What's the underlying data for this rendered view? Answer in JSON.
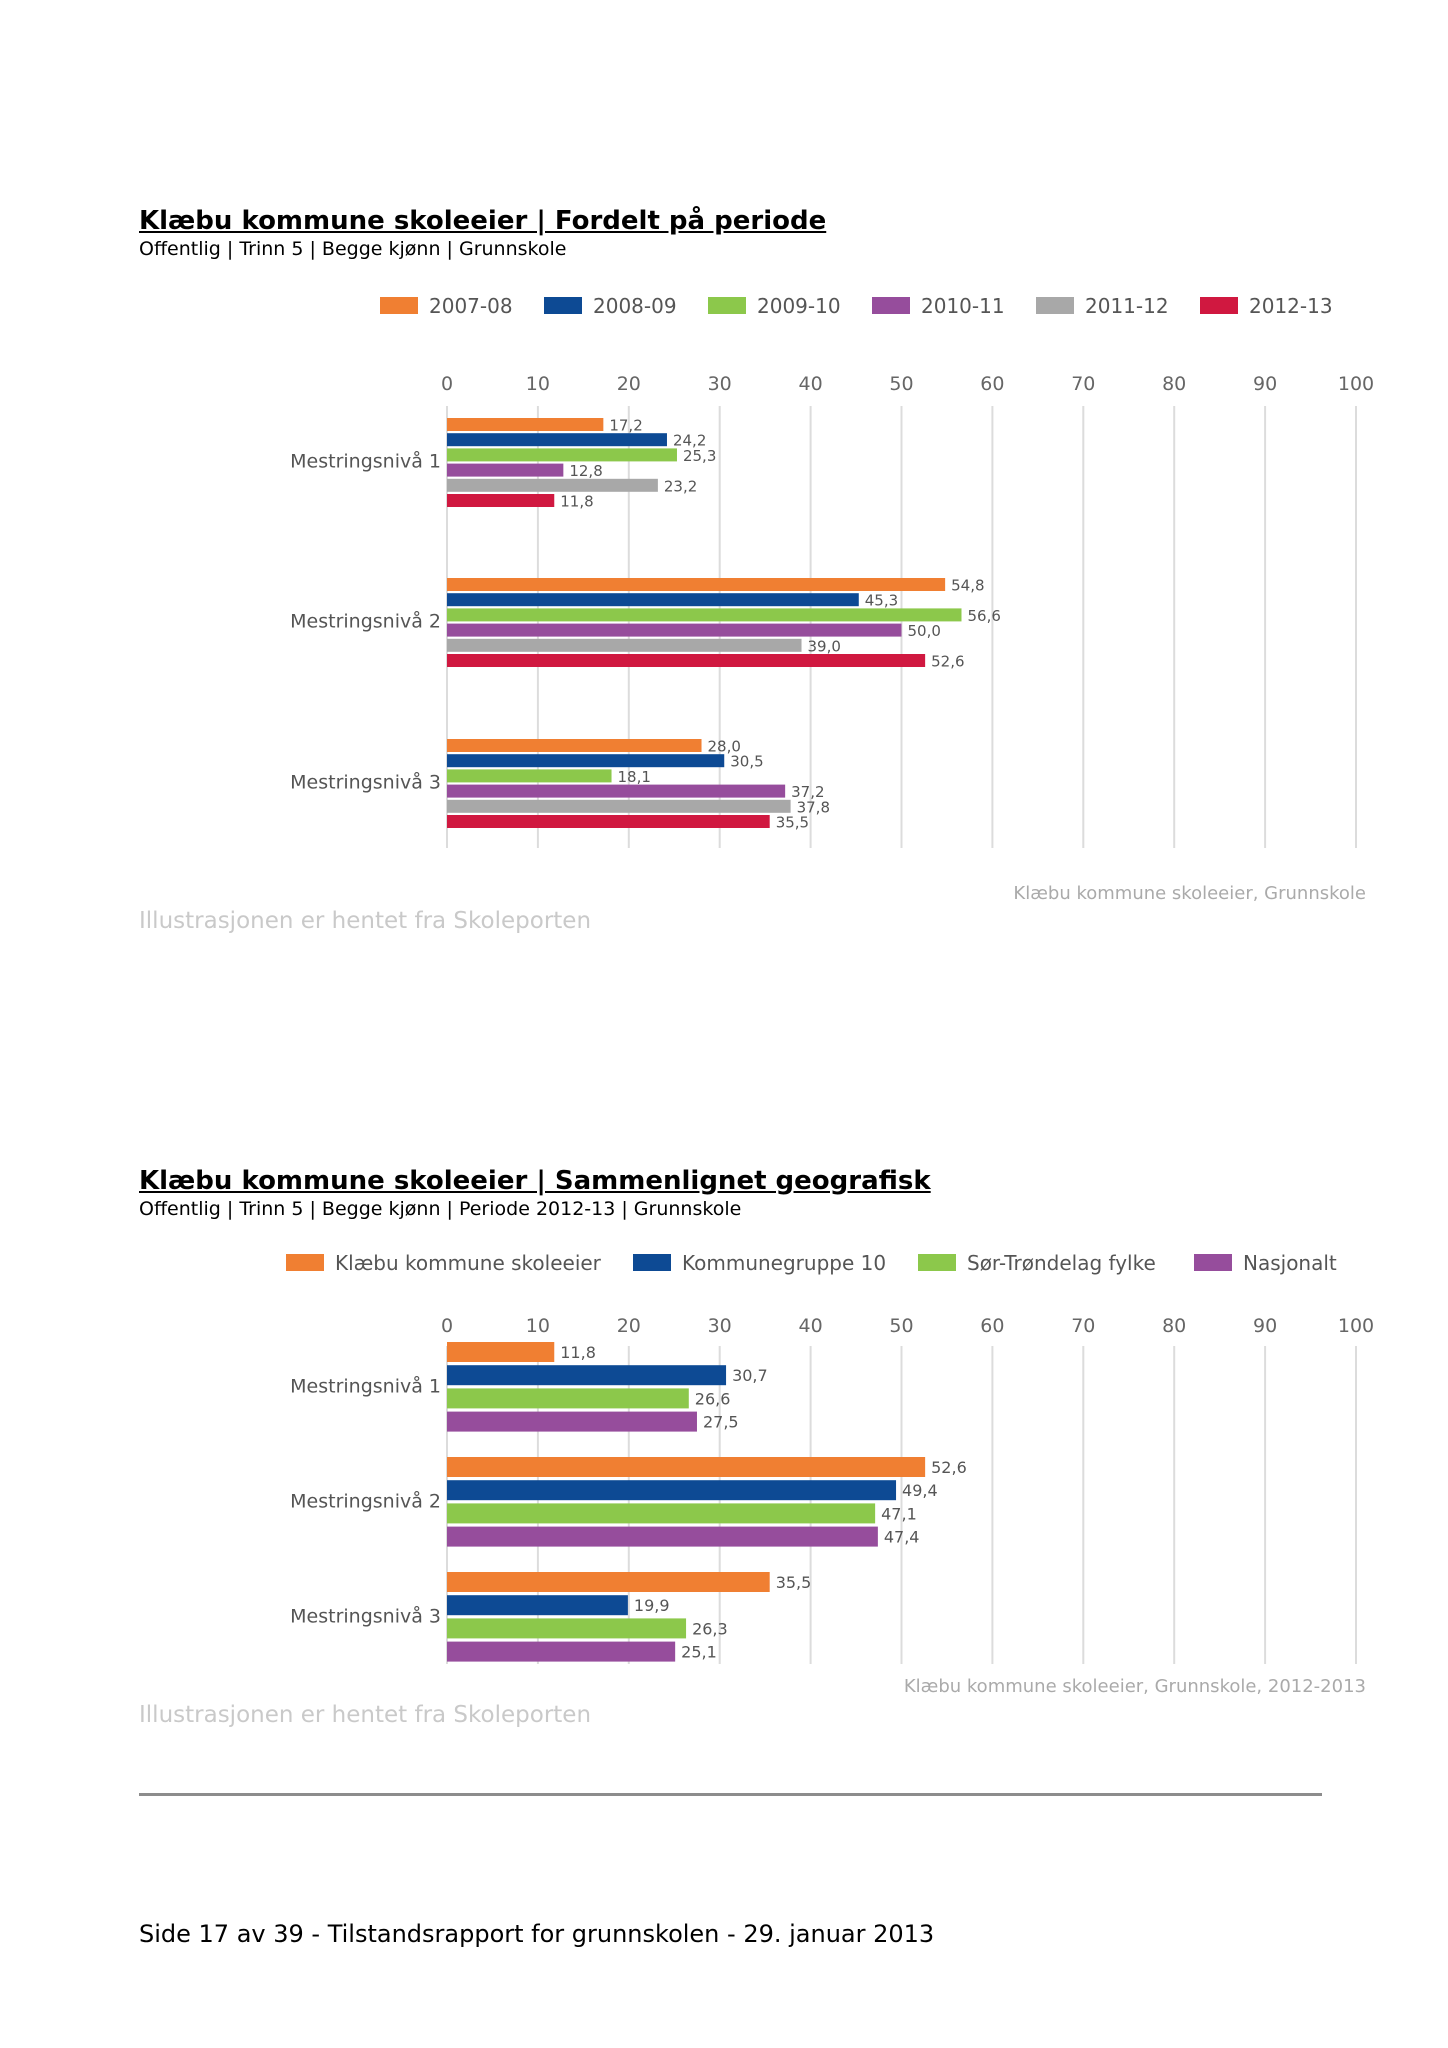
{
  "chart1": {
    "title": "Klæbu kommune skoleeier | Fordelt på periode",
    "subtitle": "Offentlig | Trinn 5 | Begge kjønn | Grunnskole",
    "source_label": "Klæbu kommune skoleeier, Grunnskole",
    "credit": "Illustrasjonen er hentet fra Skoleporten"
  },
  "chart2": {
    "title": "Klæbu kommune skoleeier | Sammenlignet geografisk",
    "subtitle": "Offentlig | Trinn 5 | Begge kjønn | Periode 2012-13 | Grunnskole",
    "source_label": "Klæbu kommune skoleeier, Grunnskole, 2012-2013",
    "credit": "Illustrasjonen er hentet fra Skoleporten"
  },
  "footer": "Side 17 av 39 - Tilstandsrapport for grunnskolen - 29. januar 2013",
  "chart_data": [
    {
      "type": "bar",
      "orientation": "horizontal",
      "title": "Klæbu kommune skoleeier | Fordelt på periode",
      "categories": [
        "Mestringsnivå 1",
        "Mestringsnivå 2",
        "Mestringsnivå 3"
      ],
      "xlim": [
        0,
        100
      ],
      "ticks": [
        0,
        10,
        20,
        30,
        40,
        50,
        60,
        70,
        80,
        90,
        100
      ],
      "grid": true,
      "legend_position": "top",
      "series": [
        {
          "name": "2007-08",
          "color": "#f07f32",
          "values": [
            17.2,
            54.8,
            28.0
          ]
        },
        {
          "name": "2008-09",
          "color": "#0d4a94",
          "values": [
            24.2,
            45.3,
            30.5
          ]
        },
        {
          "name": "2009-10",
          "color": "#8cc84b",
          "values": [
            25.3,
            56.6,
            18.1
          ]
        },
        {
          "name": "2010-11",
          "color": "#964d9c",
          "values": [
            12.8,
            50.0,
            37.2
          ]
        },
        {
          "name": "2011-12",
          "color": "#a8a8a8",
          "values": [
            23.2,
            39.0,
            37.8
          ]
        },
        {
          "name": "2012-13",
          "color": "#d01840",
          "values": [
            11.8,
            52.6,
            35.5
          ]
        }
      ]
    },
    {
      "type": "bar",
      "orientation": "horizontal",
      "title": "Klæbu kommune skoleeier | Sammenlignet geografisk",
      "categories": [
        "Mestringsnivå 1",
        "Mestringsnivå 2",
        "Mestringsnivå 3"
      ],
      "xlim": [
        0,
        100
      ],
      "ticks": [
        0,
        10,
        20,
        30,
        40,
        50,
        60,
        70,
        80,
        90,
        100
      ],
      "grid": true,
      "legend_position": "top",
      "series": [
        {
          "name": "Klæbu kommune skoleeier",
          "color": "#f07f32",
          "values": [
            11.8,
            52.6,
            35.5
          ]
        },
        {
          "name": "Kommunegruppe 10",
          "color": "#0d4a94",
          "values": [
            30.7,
            49.4,
            19.9
          ]
        },
        {
          "name": "Sør-Trøndelag fylke",
          "color": "#8cc84b",
          "values": [
            26.6,
            47.1,
            26.3
          ]
        },
        {
          "name": "Nasjonalt",
          "color": "#964d9c",
          "values": [
            27.5,
            47.4,
            25.1
          ]
        }
      ]
    }
  ]
}
